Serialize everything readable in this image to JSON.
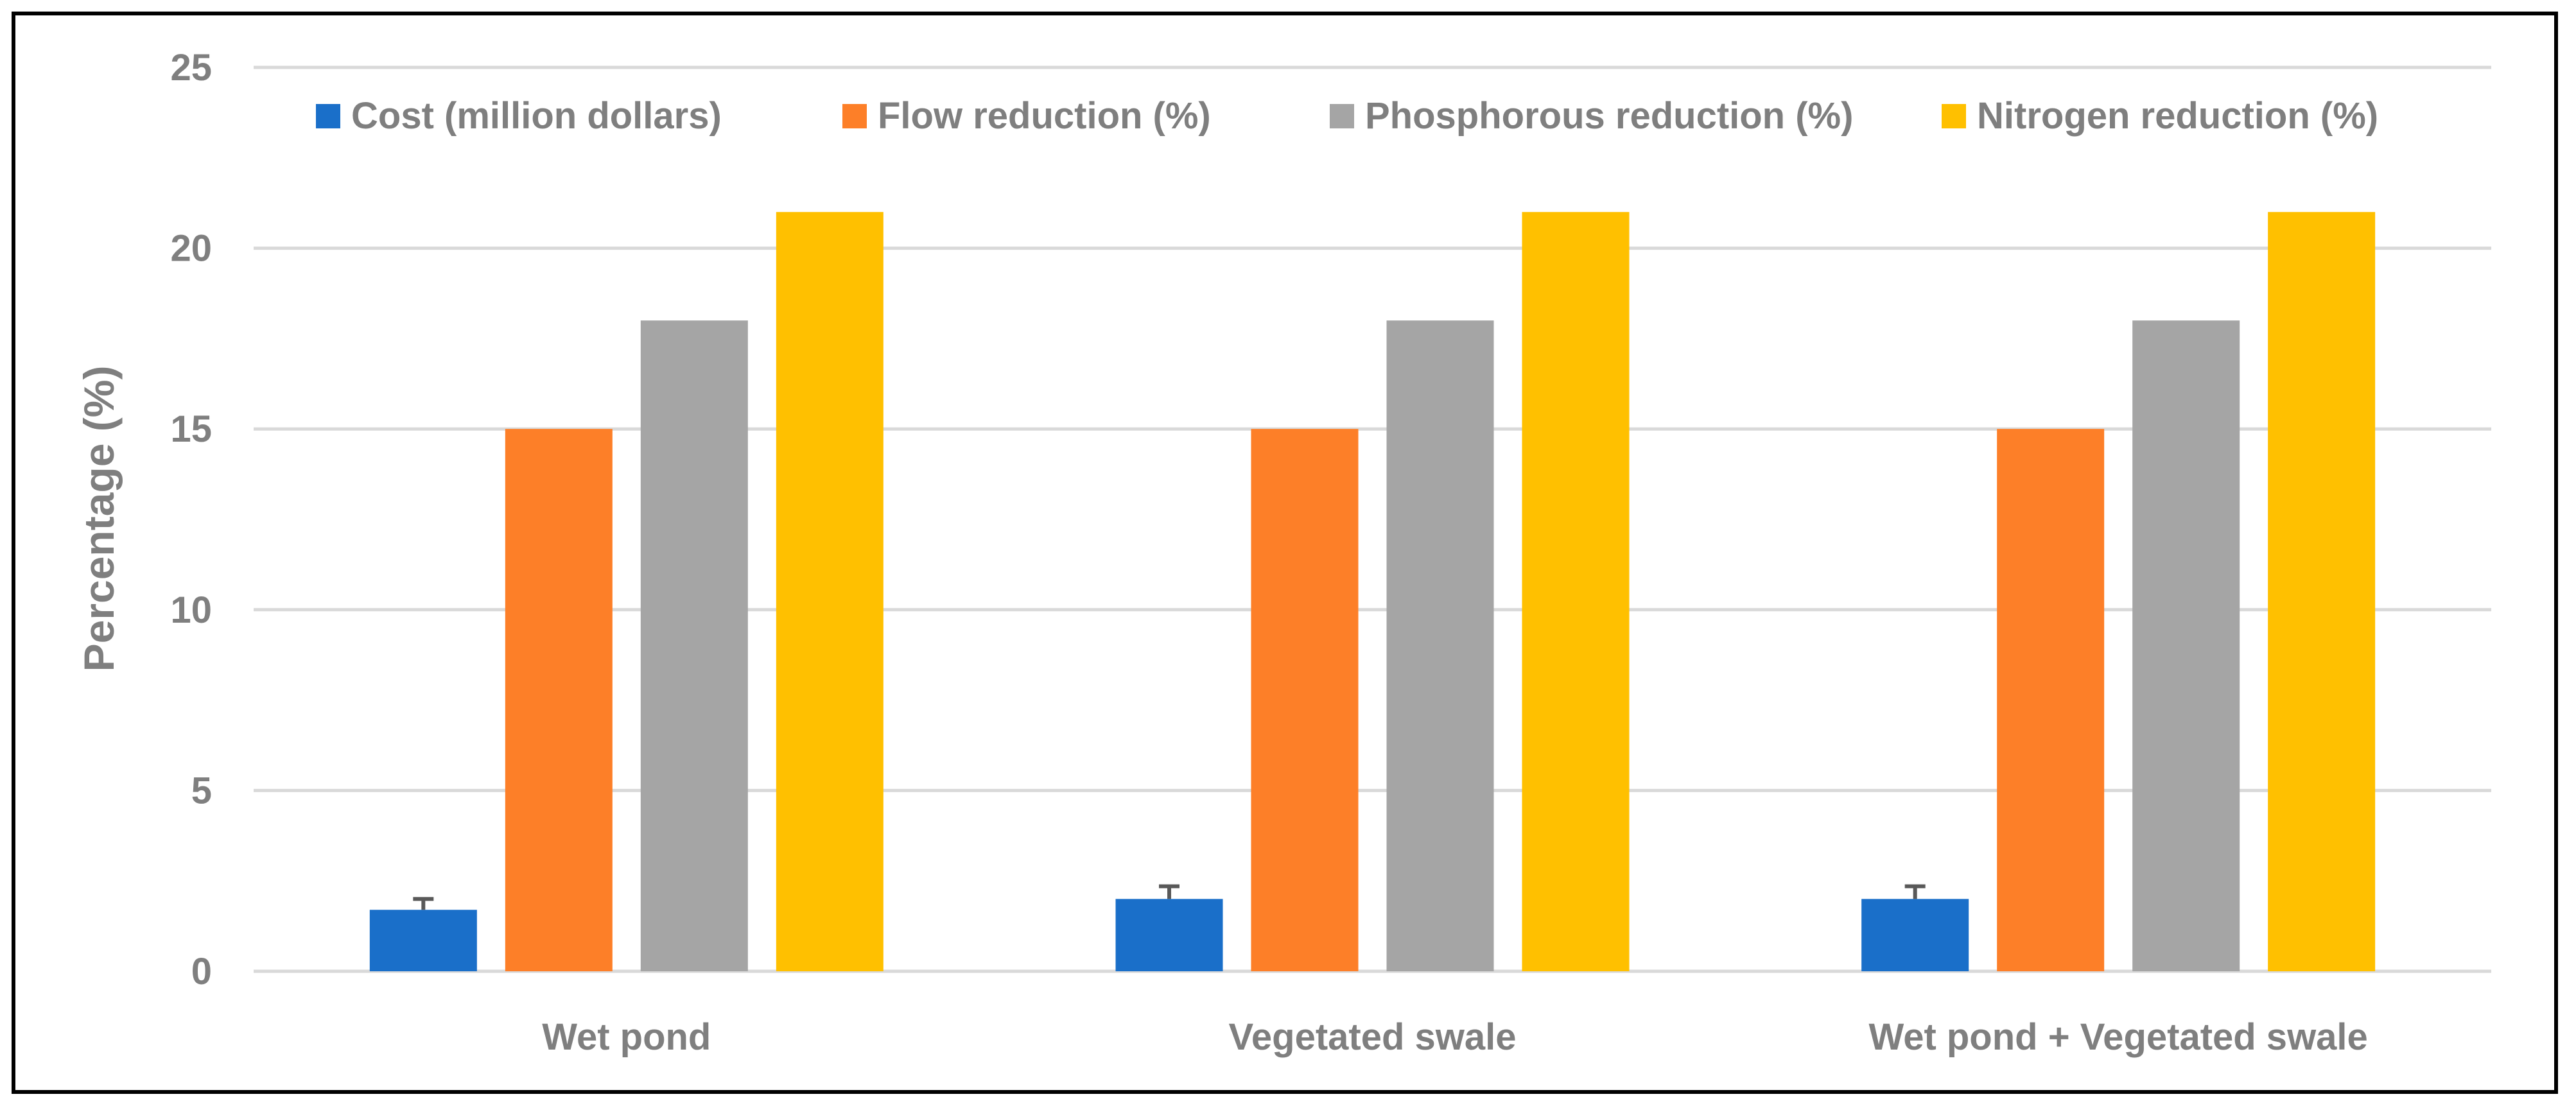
{
  "chart_data": {
    "type": "bar",
    "title": "",
    "xlabel": "",
    "ylabel": "Percentage (%)",
    "ylim": [
      0,
      25
    ],
    "yticks": [
      0,
      5,
      10,
      15,
      20,
      25
    ],
    "grid": true,
    "legend_position": "top",
    "categories": [
      "Wet pond",
      "Vegetated swale",
      "Wet pond + Vegetated swale"
    ],
    "series": [
      {
        "name": "Cost (million dollars)",
        "color": "#1a6fc9",
        "values": [
          1.7,
          2.0,
          2.0
        ],
        "error": [
          0.3,
          0.35,
          0.35
        ]
      },
      {
        "name": "Flow reduction (%)",
        "color": "#fd7f28",
        "values": [
          15,
          15,
          15
        ]
      },
      {
        "name": "Phosphorous reduction (%)",
        "color": "#a5a5a5",
        "values": [
          18,
          18,
          18
        ]
      },
      {
        "name": "Nitrogen reduction (%)",
        "color": "#ffc000",
        "values": [
          21,
          21,
          21
        ]
      }
    ]
  }
}
